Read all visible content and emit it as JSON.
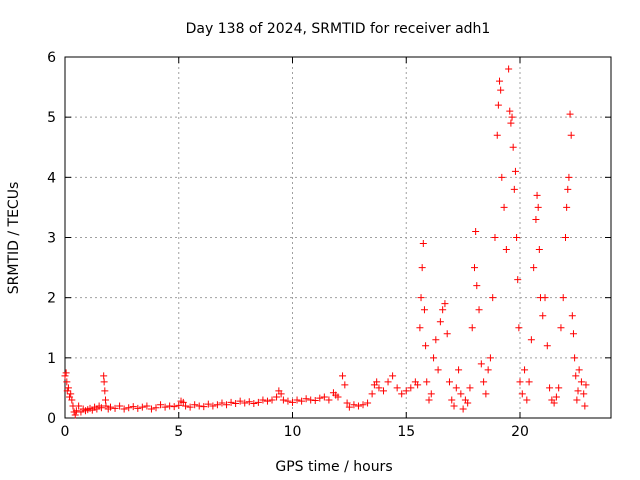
{
  "chart_data": {
    "type": "scatter",
    "title": "Day 138 of 2024, SRMTID for receiver adh1",
    "xlabel": "GPS time / hours",
    "ylabel": "SRMTID / TECUs",
    "xlim": [
      0,
      24
    ],
    "ylim": [
      0,
      6
    ],
    "xticks": [
      0,
      5,
      10,
      15,
      20
    ],
    "yticks": [
      0,
      1,
      2,
      3,
      4,
      5,
      6
    ],
    "grid": true,
    "marker": "+",
    "series": [
      {
        "name": "adh1",
        "color": "#ff0000",
        "points": [
          [
            0.0,
            0.7
          ],
          [
            0.05,
            0.75
          ],
          [
            0.08,
            0.6
          ],
          [
            0.1,
            0.45
          ],
          [
            0.15,
            0.5
          ],
          [
            0.2,
            0.35
          ],
          [
            0.25,
            0.4
          ],
          [
            0.3,
            0.3
          ],
          [
            0.35,
            0.2
          ],
          [
            0.4,
            0.1
          ],
          [
            0.45,
            0.05
          ],
          [
            0.5,
            0.12
          ],
          [
            0.6,
            0.2
          ],
          [
            0.7,
            0.1
          ],
          [
            0.8,
            0.15
          ],
          [
            0.9,
            0.12
          ],
          [
            1.0,
            0.14
          ],
          [
            1.1,
            0.16
          ],
          [
            1.2,
            0.13
          ],
          [
            1.3,
            0.18
          ],
          [
            1.4,
            0.15
          ],
          [
            1.5,
            0.2
          ],
          [
            1.6,
            0.17
          ],
          [
            1.7,
            0.7
          ],
          [
            1.72,
            0.6
          ],
          [
            1.75,
            0.45
          ],
          [
            1.78,
            0.3
          ],
          [
            1.8,
            0.2
          ],
          [
            1.9,
            0.15
          ],
          [
            2.0,
            0.18
          ],
          [
            2.2,
            0.16
          ],
          [
            2.4,
            0.2
          ],
          [
            2.6,
            0.15
          ],
          [
            2.8,
            0.17
          ],
          [
            3.0,
            0.19
          ],
          [
            3.2,
            0.16
          ],
          [
            3.4,
            0.18
          ],
          [
            3.6,
            0.2
          ],
          [
            3.8,
            0.15
          ],
          [
            4.0,
            0.17
          ],
          [
            4.2,
            0.22
          ],
          [
            4.4,
            0.18
          ],
          [
            4.6,
            0.2
          ],
          [
            4.8,
            0.19
          ],
          [
            5.0,
            0.21
          ],
          [
            5.1,
            0.28
          ],
          [
            5.2,
            0.26
          ],
          [
            5.3,
            0.2
          ],
          [
            5.5,
            0.18
          ],
          [
            5.7,
            0.22
          ],
          [
            5.9,
            0.2
          ],
          [
            6.1,
            0.19
          ],
          [
            6.3,
            0.23
          ],
          [
            6.5,
            0.2
          ],
          [
            6.7,
            0.22
          ],
          [
            6.9,
            0.25
          ],
          [
            7.1,
            0.22
          ],
          [
            7.3,
            0.26
          ],
          [
            7.5,
            0.24
          ],
          [
            7.7,
            0.28
          ],
          [
            7.9,
            0.25
          ],
          [
            8.1,
            0.27
          ],
          [
            8.3,
            0.24
          ],
          [
            8.5,
            0.26
          ],
          [
            8.7,
            0.3
          ],
          [
            8.9,
            0.28
          ],
          [
            9.1,
            0.3
          ],
          [
            9.3,
            0.35
          ],
          [
            9.4,
            0.45
          ],
          [
            9.5,
            0.4
          ],
          [
            9.6,
            0.3
          ],
          [
            9.8,
            0.28
          ],
          [
            10.0,
            0.26
          ],
          [
            10.2,
            0.3
          ],
          [
            10.4,
            0.28
          ],
          [
            10.6,
            0.32
          ],
          [
            10.8,
            0.3
          ],
          [
            11.0,
            0.29
          ],
          [
            11.2,
            0.33
          ],
          [
            11.4,
            0.35
          ],
          [
            11.6,
            0.3
          ],
          [
            11.8,
            0.42
          ],
          [
            11.9,
            0.38
          ],
          [
            12.0,
            0.35
          ],
          [
            12.2,
            0.7
          ],
          [
            12.3,
            0.55
          ],
          [
            12.4,
            0.25
          ],
          [
            12.5,
            0.18
          ],
          [
            12.7,
            0.22
          ],
          [
            12.9,
            0.2
          ],
          [
            13.1,
            0.22
          ],
          [
            13.3,
            0.25
          ],
          [
            13.5,
            0.4
          ],
          [
            13.6,
            0.55
          ],
          [
            13.7,
            0.6
          ],
          [
            13.8,
            0.5
          ],
          [
            14.0,
            0.45
          ],
          [
            14.2,
            0.6
          ],
          [
            14.4,
            0.7
          ],
          [
            14.6,
            0.5
          ],
          [
            14.8,
            0.4
          ],
          [
            15.0,
            0.45
          ],
          [
            15.2,
            0.5
          ],
          [
            15.4,
            0.6
          ],
          [
            15.5,
            0.55
          ],
          [
            15.6,
            1.5
          ],
          [
            15.65,
            2.0
          ],
          [
            15.7,
            2.5
          ],
          [
            15.75,
            2.9
          ],
          [
            15.8,
            1.8
          ],
          [
            15.85,
            1.2
          ],
          [
            15.9,
            0.6
          ],
          [
            16.0,
            0.3
          ],
          [
            16.1,
            0.4
          ],
          [
            16.2,
            1.0
          ],
          [
            16.3,
            1.3
          ],
          [
            16.4,
            0.8
          ],
          [
            16.5,
            1.6
          ],
          [
            16.6,
            1.8
          ],
          [
            16.7,
            1.9
          ],
          [
            16.8,
            1.4
          ],
          [
            16.9,
            0.6
          ],
          [
            17.0,
            0.3
          ],
          [
            17.1,
            0.2
          ],
          [
            17.2,
            0.5
          ],
          [
            17.3,
            0.8
          ],
          [
            17.4,
            0.4
          ],
          [
            17.5,
            0.15
          ],
          [
            17.6,
            0.3
          ],
          [
            17.7,
            0.25
          ],
          [
            17.8,
            0.5
          ],
          [
            17.9,
            1.5
          ],
          [
            18.0,
            2.5
          ],
          [
            18.05,
            3.1
          ],
          [
            18.1,
            2.2
          ],
          [
            18.2,
            1.8
          ],
          [
            18.3,
            0.9
          ],
          [
            18.4,
            0.6
          ],
          [
            18.5,
            0.4
          ],
          [
            18.6,
            0.8
          ],
          [
            18.7,
            1.0
          ],
          [
            18.8,
            2.0
          ],
          [
            18.9,
            3.0
          ],
          [
            19.0,
            4.7
          ],
          [
            19.05,
            5.2
          ],
          [
            19.1,
            5.6
          ],
          [
            19.15,
            5.45
          ],
          [
            19.2,
            4.0
          ],
          [
            19.3,
            3.5
          ],
          [
            19.4,
            2.8
          ],
          [
            19.5,
            5.8
          ],
          [
            19.55,
            5.1
          ],
          [
            19.6,
            4.9
          ],
          [
            19.65,
            5.0
          ],
          [
            19.7,
            4.5
          ],
          [
            19.75,
            3.8
          ],
          [
            19.8,
            4.1
          ],
          [
            19.85,
            3.0
          ],
          [
            19.9,
            2.3
          ],
          [
            19.95,
            1.5
          ],
          [
            20.0,
            0.6
          ],
          [
            20.1,
            0.4
          ],
          [
            20.2,
            0.8
          ],
          [
            20.3,
            0.3
          ],
          [
            20.4,
            0.6
          ],
          [
            20.5,
            1.3
          ],
          [
            20.6,
            2.5
          ],
          [
            20.7,
            3.3
          ],
          [
            20.75,
            3.7
          ],
          [
            20.8,
            3.5
          ],
          [
            20.85,
            2.8
          ],
          [
            20.9,
            2.0
          ],
          [
            21.0,
            1.7
          ],
          [
            21.1,
            2.0
          ],
          [
            21.2,
            1.2
          ],
          [
            21.3,
            0.5
          ],
          [
            21.4,
            0.3
          ],
          [
            21.5,
            0.25
          ],
          [
            21.6,
            0.35
          ],
          [
            21.7,
            0.5
          ],
          [
            21.8,
            1.5
          ],
          [
            21.9,
            2.0
          ],
          [
            22.0,
            3.0
          ],
          [
            22.05,
            3.5
          ],
          [
            22.1,
            3.8
          ],
          [
            22.15,
            4.0
          ],
          [
            22.2,
            5.05
          ],
          [
            22.25,
            4.7
          ],
          [
            22.3,
            1.7
          ],
          [
            22.35,
            1.4
          ],
          [
            22.4,
            1.0
          ],
          [
            22.45,
            0.7
          ],
          [
            22.5,
            0.3
          ],
          [
            22.55,
            0.45
          ],
          [
            22.6,
            0.8
          ],
          [
            22.7,
            0.6
          ],
          [
            22.8,
            0.4
          ],
          [
            22.85,
            0.2
          ],
          [
            22.9,
            0.55
          ]
        ]
      }
    ]
  }
}
